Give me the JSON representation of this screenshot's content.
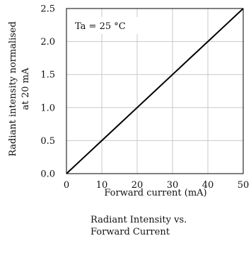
{
  "chart_data": {
    "type": "line",
    "title": "",
    "caption": "Radiant Intensity vs.\nForward Current",
    "xlabel": "Forward current (mA)",
    "ylabel_lines": [
      "Radiant intensity normalised",
      "at 20 mA"
    ],
    "xlim": [
      0,
      50
    ],
    "ylim": [
      0,
      2.5
    ],
    "xticks": [
      0,
      10,
      20,
      30,
      40,
      50
    ],
    "xtick_labels": [
      "0",
      "10",
      "20",
      "30",
      "40",
      "50"
    ],
    "yticks": [
      0,
      0.5,
      1.0,
      1.5,
      2.0,
      2.5
    ],
    "ytick_labels": [
      "0.0",
      "0.5",
      "1.0",
      "1.5",
      "2.0",
      "2.5"
    ],
    "grid": true,
    "annotation": "Ta = 25 °C",
    "series": [
      {
        "x": [
          0,
          5,
          10,
          15,
          20,
          25,
          30,
          35,
          40,
          45,
          50
        ],
        "values": [
          0,
          0.25,
          0.5,
          0.75,
          1.0,
          1.25,
          1.5,
          1.75,
          2.0,
          2.25,
          2.5
        ]
      }
    ],
    "colors": {
      "line": "#000000",
      "grid": "#c8c8c8",
      "frame": "#000000"
    }
  }
}
